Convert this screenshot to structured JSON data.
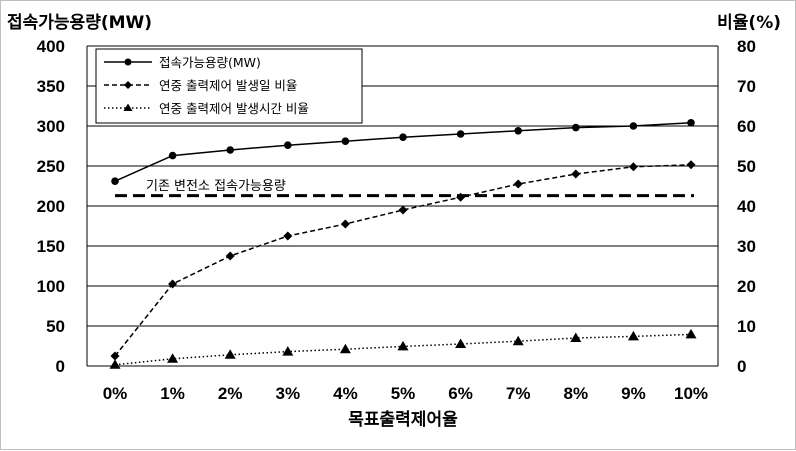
{
  "chart_data": {
    "type": "line",
    "y_left_title": "접속가능용량(MW)",
    "y_right_title": "비율(%)",
    "x_title": "목표출력제어율",
    "categories": [
      "0%",
      "1%",
      "2%",
      "3%",
      "4%",
      "5%",
      "6%",
      "7%",
      "8%",
      "9%",
      "10%"
    ],
    "y_left_ticks": [
      "400",
      "350",
      "300",
      "250",
      "200",
      "150",
      "100",
      "50",
      "0"
    ],
    "y_right_ticks": [
      "80",
      "70",
      "60",
      "50",
      "40",
      "30",
      "20",
      "10",
      "0"
    ],
    "ylim_left": [
      0,
      400
    ],
    "ylim_right": [
      0,
      80
    ],
    "grid": true,
    "legend_position": "top-left",
    "series": [
      {
        "name": "접속가능용량(MW)",
        "axis": "left",
        "line_style": "solid",
        "marker": "circle",
        "values": [
          231,
          263,
          270,
          276,
          281,
          286,
          290,
          294,
          298,
          300,
          304
        ]
      },
      {
        "name": "연중 출력제어 발생일 비율",
        "axis": "right",
        "line_style": "dashed",
        "marker": "diamond",
        "values": [
          2.5,
          20.5,
          27.5,
          32.5,
          35.5,
          39.0,
          42.2,
          45.5,
          48.0,
          49.8,
          50.3
        ]
      },
      {
        "name": "연중 출력제어 발생시간 비율",
        "axis": "right",
        "line_style": "dotted",
        "marker": "triangle",
        "values": [
          0.3,
          1.8,
          2.8,
          3.6,
          4.2,
          4.9,
          5.5,
          6.2,
          7.0,
          7.4,
          7.9
        ]
      }
    ],
    "reference_line": {
      "label": "기존 변전소 접속가능용량",
      "axis": "left",
      "value": 213
    }
  },
  "colors": {
    "line": "#000000",
    "grid": "#000000",
    "background": "#ffffff"
  }
}
